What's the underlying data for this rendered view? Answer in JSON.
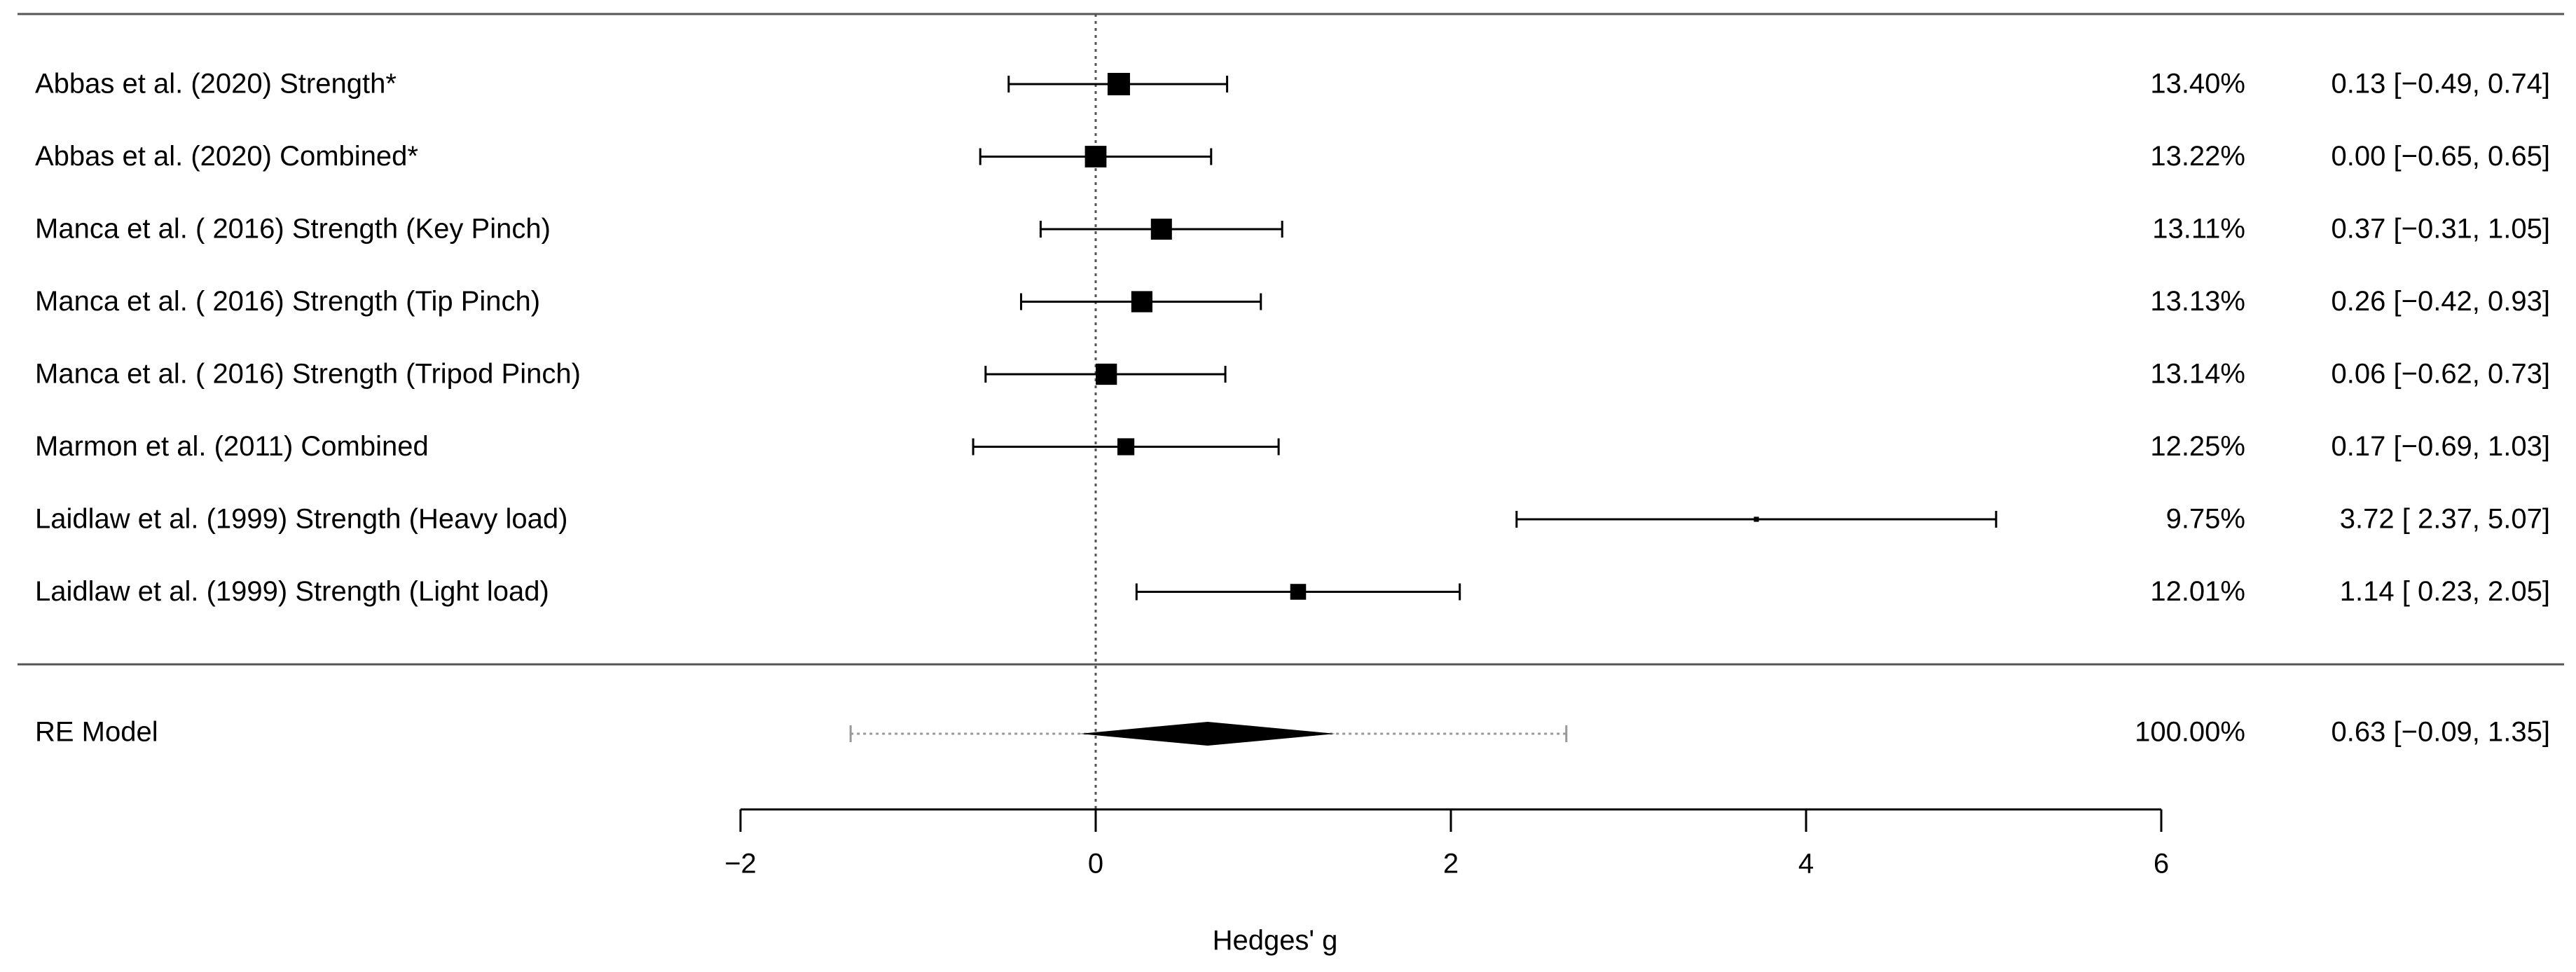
{
  "chart_data": {
    "type": "forest",
    "xlabel": "Hedges' g",
    "xlim": [
      -2,
      6
    ],
    "xticks": [
      "−2",
      "0",
      "2",
      "4",
      "6"
    ],
    "xtick_values": [
      -2,
      0,
      2,
      4,
      6
    ],
    "reference_line": 0,
    "studies": [
      {
        "label": "Abbas et al. (2020) Strength*",
        "estimate": 0.13,
        "ci": [
          -0.49,
          0.74
        ],
        "weight_pct": 13.4,
        "weight_text": "13.40%",
        "ci_text": "0.13 [−0.49, 0.74]"
      },
      {
        "label": "Abbas et al. (2020) Combined*",
        "estimate": 0.0,
        "ci": [
          -0.65,
          0.65
        ],
        "weight_pct": 13.22,
        "weight_text": "13.22%",
        "ci_text": "0.00 [−0.65, 0.65]"
      },
      {
        "label": "Manca et al. ( 2016) Strength (Key Pinch)",
        "estimate": 0.37,
        "ci": [
          -0.31,
          1.05
        ],
        "weight_pct": 13.11,
        "weight_text": "13.11%",
        "ci_text": "0.37 [−0.31, 1.05]"
      },
      {
        "label": "Manca et al. ( 2016) Strength (Tip Pinch)",
        "estimate": 0.26,
        "ci": [
          -0.42,
          0.93
        ],
        "weight_pct": 13.13,
        "weight_text": "13.13%",
        "ci_text": "0.26 [−0.42, 0.93]"
      },
      {
        "label": "Manca et al. ( 2016) Strength (Tripod Pinch)",
        "estimate": 0.06,
        "ci": [
          -0.62,
          0.73
        ],
        "weight_pct": 13.14,
        "weight_text": "13.14%",
        "ci_text": "0.06 [−0.62, 0.73]"
      },
      {
        "label": "Marmon et al. (2011) Combined",
        "estimate": 0.17,
        "ci": [
          -0.69,
          1.03
        ],
        "weight_pct": 12.25,
        "weight_text": "12.25%",
        "ci_text": "0.17 [−0.69, 1.03]"
      },
      {
        "label": "Laidlaw et al. (1999) Strength (Heavy load)",
        "estimate": 3.72,
        "ci": [
          2.37,
          5.07
        ],
        "weight_pct": 9.75,
        "weight_text": "9.75%",
        "ci_text": "3.72 [ 2.37, 5.07]"
      },
      {
        "label": "Laidlaw et al. (1999) Strength (Light load)",
        "estimate": 1.14,
        "ci": [
          0.23,
          2.05
        ],
        "weight_pct": 12.01,
        "weight_text": "12.01%",
        "ci_text": "1.14 [ 0.23, 2.05]"
      }
    ],
    "summary": {
      "label": "RE Model",
      "estimate": 0.63,
      "ci": [
        -0.09,
        1.35
      ],
      "prediction_interval": [
        -1.38,
        2.65
      ],
      "weight_text": "100.00%",
      "ci_text": "0.63 [−0.09, 1.35]"
    }
  }
}
